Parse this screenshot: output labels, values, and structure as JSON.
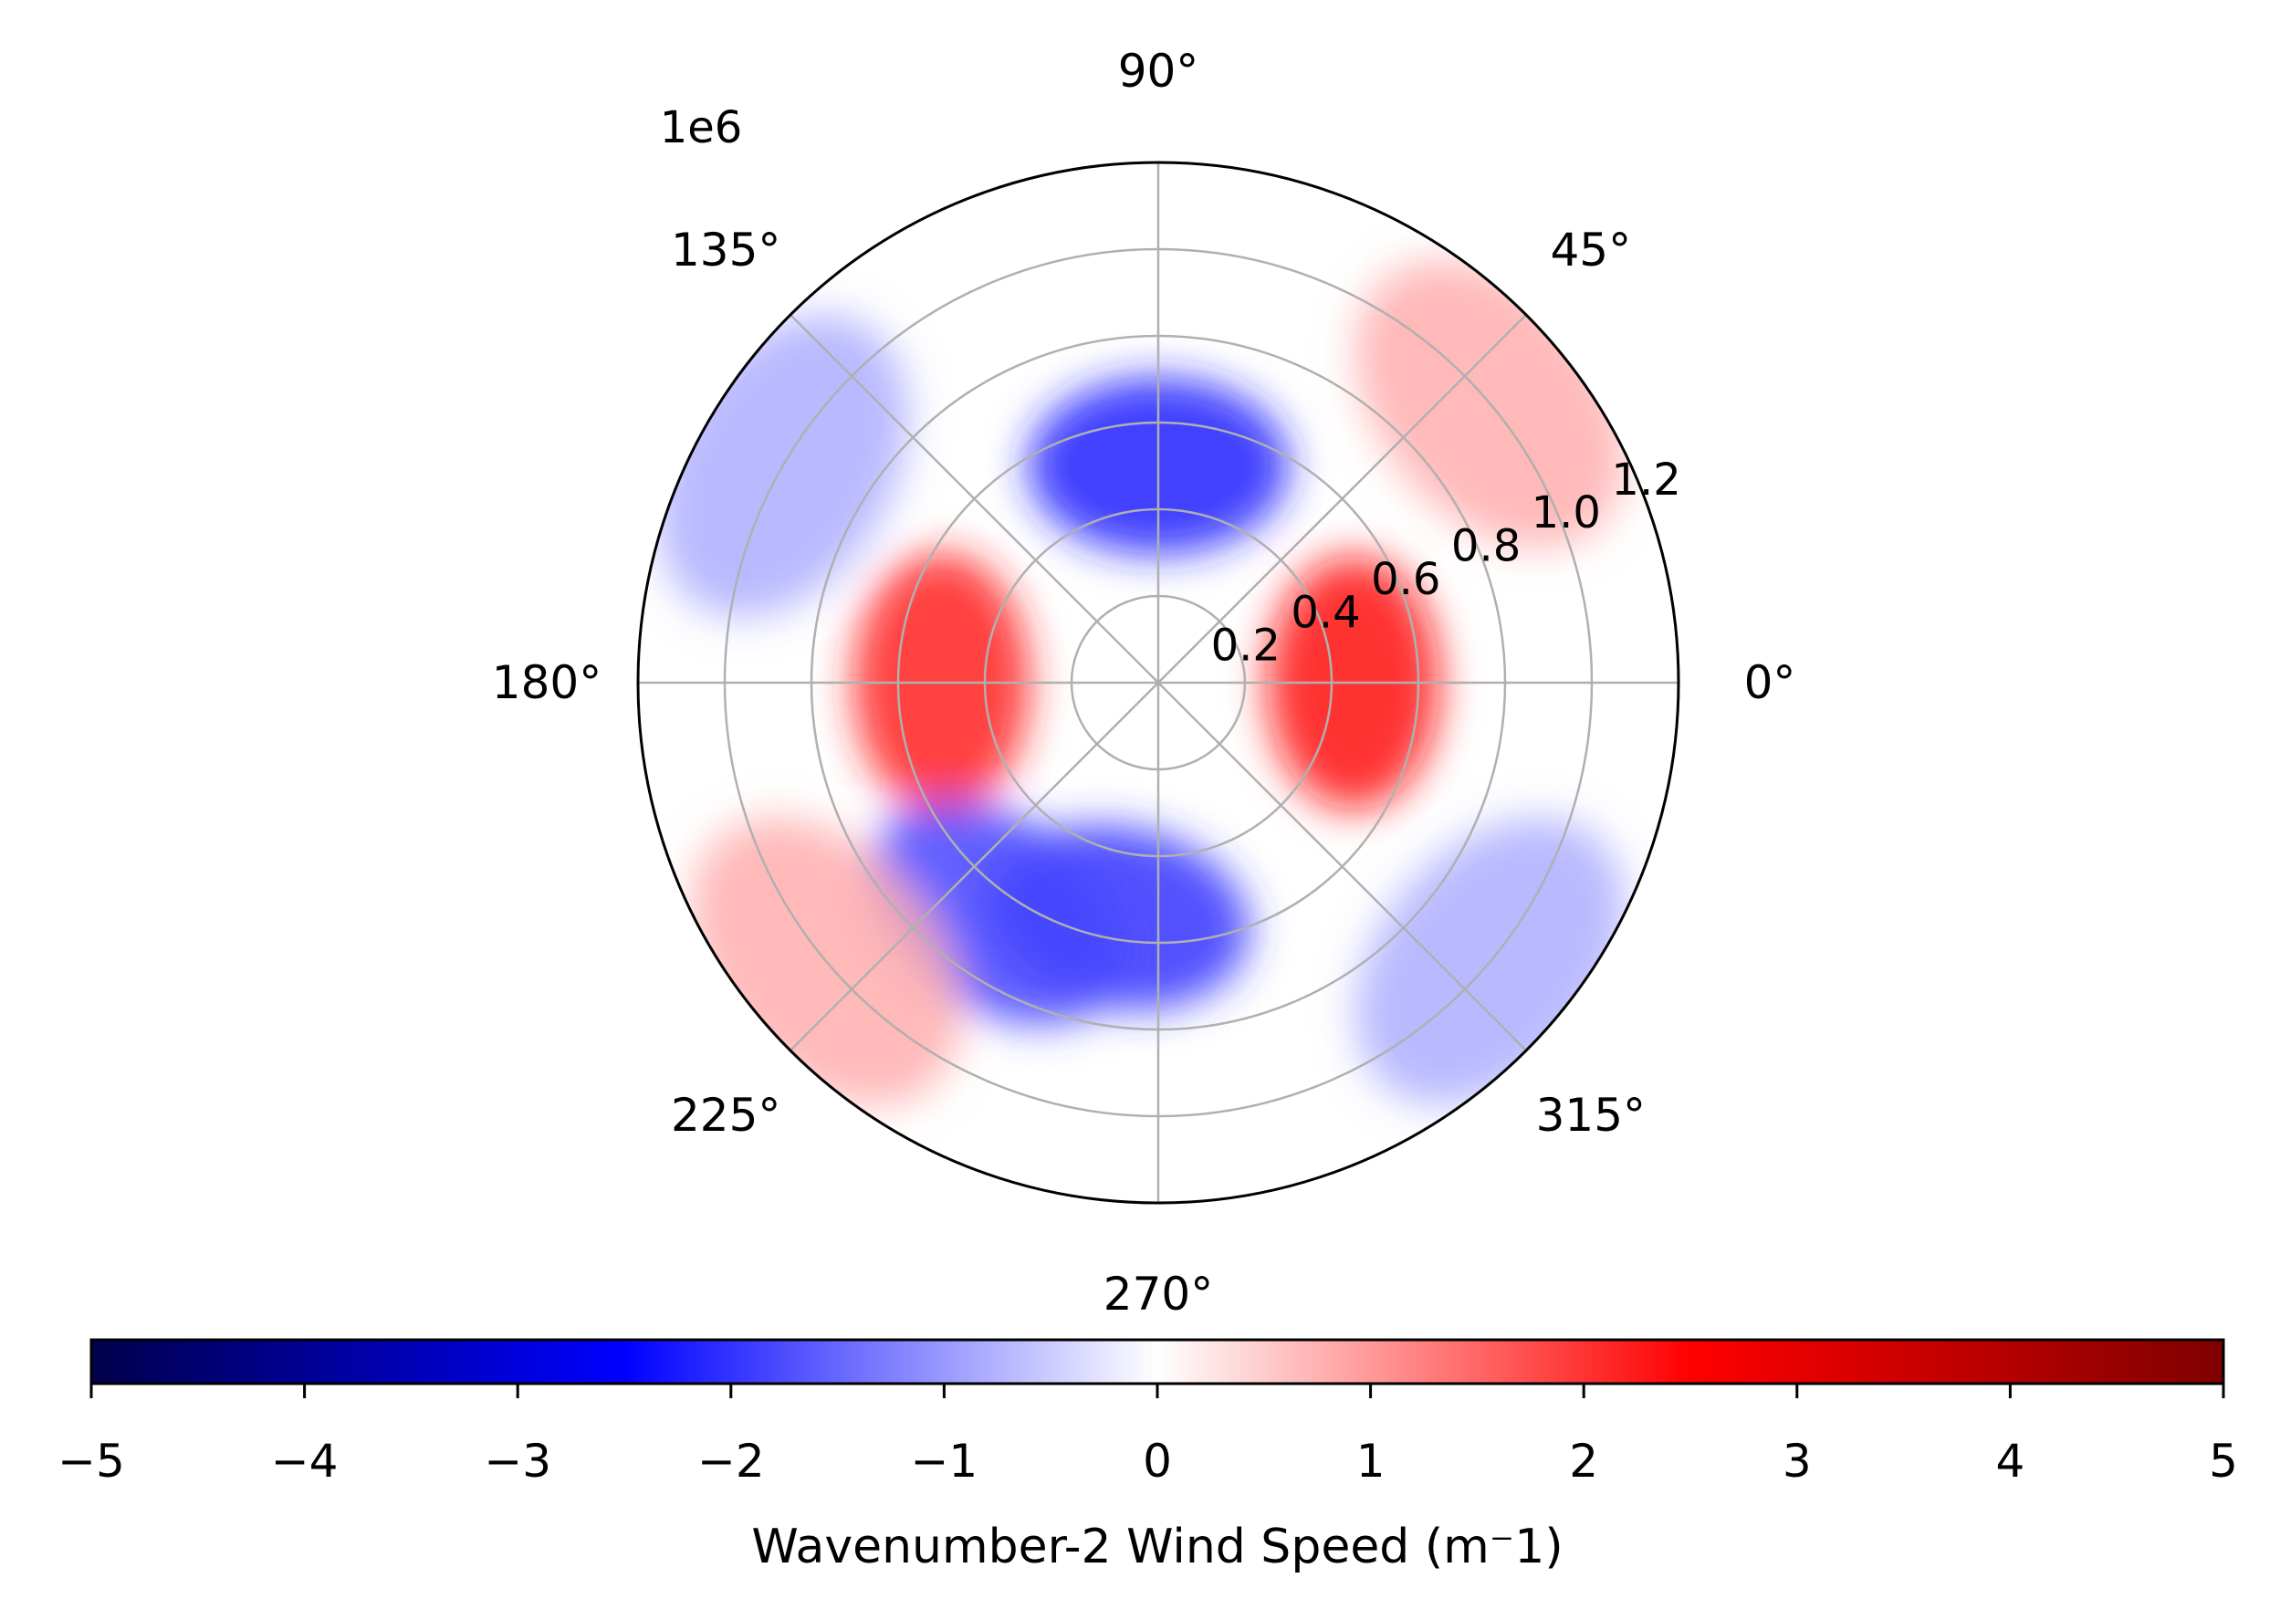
{
  "chart_data": {
    "type": "heatmap",
    "projection": "polar",
    "title": "",
    "offset_text": "1e6",
    "angular_ticks": [
      {
        "angle": 0,
        "label": "0°"
      },
      {
        "angle": 45,
        "label": "45°"
      },
      {
        "angle": 90,
        "label": "90°"
      },
      {
        "angle": 135,
        "label": "135°"
      },
      {
        "angle": 180,
        "label": "180°"
      },
      {
        "angle": 225,
        "label": "225°"
      },
      {
        "angle": 270,
        "label": "270°"
      },
      {
        "angle": 315,
        "label": "315°"
      }
    ],
    "radial_ticks": [
      {
        "value": 0.2,
        "label": "0.2"
      },
      {
        "value": 0.4,
        "label": "0.4"
      },
      {
        "value": 0.6,
        "label": "0.6"
      },
      {
        "value": 0.8,
        "label": "0.8"
      },
      {
        "value": 1.0,
        "label": "1.0"
      },
      {
        "value": 1.2,
        "label": "1.2"
      }
    ],
    "rlim": [
      0,
      1.2
    ],
    "grid": true,
    "colormap": "seismic",
    "colorbar": {
      "orientation": "horizontal",
      "location": "bottom",
      "vmin": -5,
      "vmax": 5,
      "ticks": [
        {
          "value": -5,
          "label": "−5"
        },
        {
          "value": -4,
          "label": "−4"
        },
        {
          "value": -3,
          "label": "−3"
        },
        {
          "value": -2,
          "label": "−2"
        },
        {
          "value": -1,
          "label": "−1"
        },
        {
          "value": 0,
          "label": "0"
        },
        {
          "value": 1,
          "label": "1"
        },
        {
          "value": 2,
          "label": "2"
        },
        {
          "value": 3,
          "label": "3"
        },
        {
          "value": 4,
          "label": "4"
        },
        {
          "value": 5,
          "label": "5"
        }
      ],
      "label": "Wavenumber-2 Wind Speed (m$^-1$)",
      "label_rendered": "Wavenumber-2 Wind Speed (m⁻1)"
    },
    "field_features": [
      {
        "r": 0.45,
        "theta": 0,
        "value": 2.4
      },
      {
        "r": 0.5,
        "theta": 180,
        "value": 2.2
      },
      {
        "r": 0.5,
        "theta": 90,
        "value": -2.2
      },
      {
        "r": 0.55,
        "theta": 260,
        "value": -2.0
      },
      {
        "r": 0.65,
        "theta": 235,
        "value": -1.8
      },
      {
        "r": 1.0,
        "theta": 40,
        "value": 0.8
      },
      {
        "r": 1.0,
        "theta": 150,
        "value": -0.8
      },
      {
        "r": 1.0,
        "theta": 220,
        "value": 0.8
      },
      {
        "r": 1.0,
        "theta": 320,
        "value": -0.8
      }
    ],
    "colors": {
      "grid": "#b0b0b0",
      "frame": "#000000",
      "cmap_stops": [
        "#00004c",
        "#0000ff",
        "#ffffff",
        "#ff0000",
        "#7f0000"
      ]
    }
  }
}
